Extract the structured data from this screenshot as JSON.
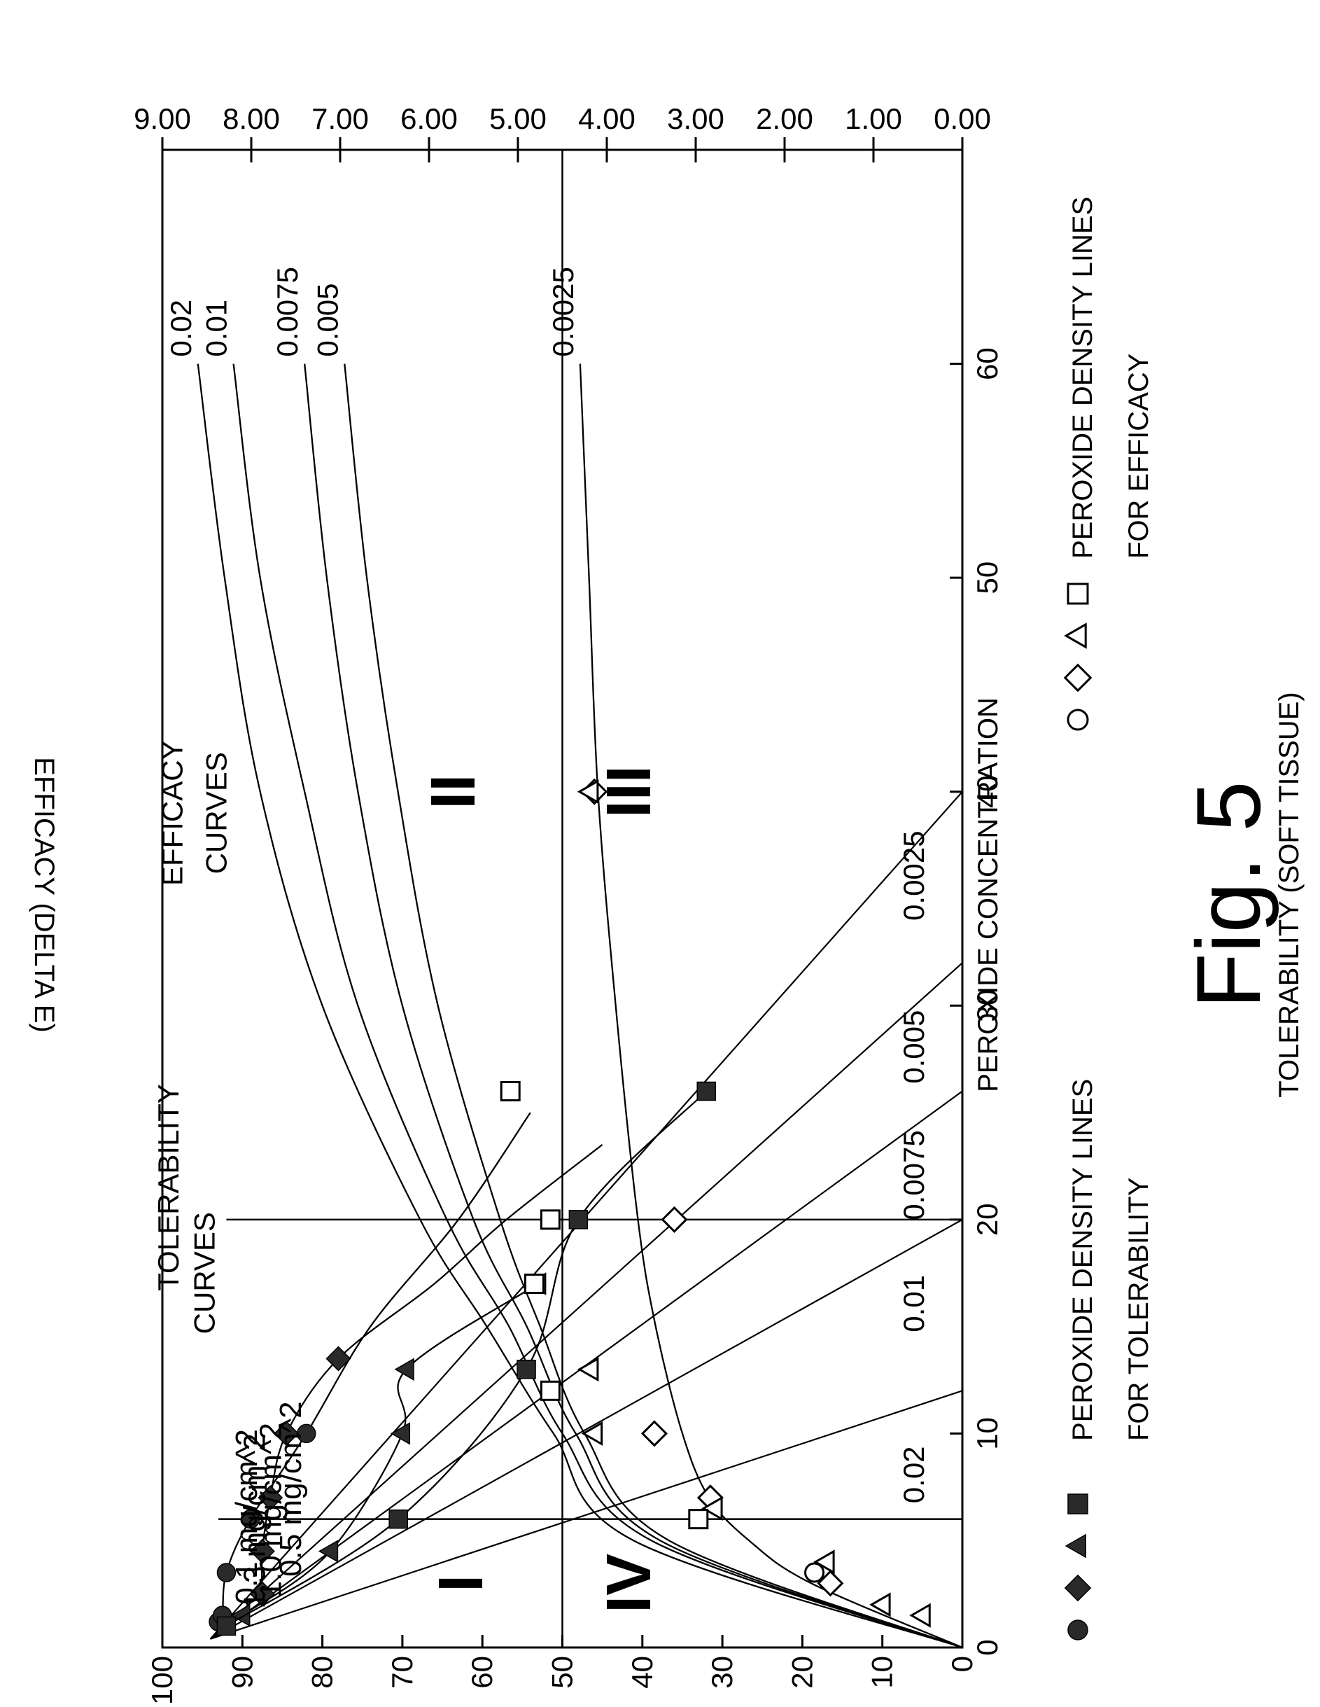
{
  "figure_label": "Fig. 5",
  "chart_data": {
    "type": "line",
    "xlabel": "PEROXIDE CONCENTRATION",
    "ylabel_left": "TOLERABILITY (SOFT TISSUE)",
    "ylabel_right": "EFFICACY (DELTA E)",
    "xlim": [
      0,
      70
    ],
    "ylim_left": [
      0,
      100
    ],
    "ylim_right": [
      0,
      9
    ],
    "x_ticks": [
      "0",
      "10",
      "20",
      "30",
      "40",
      "50",
      "60"
    ],
    "y_left_ticks": [
      "0",
      "10",
      "20",
      "30",
      "40",
      "50",
      "60",
      "70",
      "80",
      "90",
      "100"
    ],
    "y_right_ticks": [
      "0.00",
      "1.00",
      "2.00",
      "3.00",
      "4.00",
      "5.00",
      "6.00",
      "7.00",
      "8.00",
      "9.00"
    ],
    "guide_lines": {
      "horizontal_tolerability": 50,
      "vertical_concentrations": [
        6,
        20
      ]
    },
    "region_labels": [
      {
        "text": "I",
        "x": 3,
        "y": 60
      },
      {
        "text": "II",
        "x": 40,
        "y": 61
      },
      {
        "text": "III",
        "x": 40,
        "y": 39
      },
      {
        "text": "IV",
        "x": 3,
        "y": 39
      }
    ],
    "tolerability_curves": [
      {
        "label": "0.1 mg/cm^2",
        "marker": "circle",
        "points": [
          [
            1.2,
            93
          ],
          [
            1.5,
            92.5
          ],
          [
            3.5,
            92
          ],
          [
            6,
            89
          ],
          [
            10,
            82
          ],
          [
            15,
            74
          ],
          [
            20,
            63
          ],
          [
            25,
            54
          ]
        ]
      },
      {
        "label": "0.5 mg/cm^2",
        "marker": "diamond",
        "points": [
          [
            2.5,
            87.5
          ],
          [
            4.5,
            87.5
          ],
          [
            7,
            86.5
          ],
          [
            10,
            84.5
          ],
          [
            13.5,
            78
          ],
          [
            17,
            66
          ],
          [
            20,
            57
          ],
          [
            23.5,
            45
          ]
        ]
      },
      {
        "label": "1.0 mg/cm^2",
        "marker": "triangle",
        "points": [
          [
            1.5,
            90
          ],
          [
            4.5,
            79
          ],
          [
            10,
            70
          ],
          [
            13,
            69.5
          ],
          [
            17,
            53
          ]
        ]
      },
      {
        "label": "1.3 mg/cm^2",
        "marker": "square",
        "points": [
          [
            1,
            92
          ],
          [
            6,
            70.5
          ],
          [
            13,
            54.5
          ],
          [
            20,
            48
          ],
          [
            26,
            32
          ]
        ]
      }
    ],
    "efficacy_curves": [
      {
        "label": "0.02",
        "points": [
          [
            0,
            0
          ],
          [
            5,
            3.7
          ],
          [
            10,
            4.6
          ],
          [
            15,
            5.35
          ],
          [
            20,
            6.1
          ],
          [
            30,
            7.2
          ],
          [
            40,
            7.9
          ],
          [
            50,
            8.3
          ],
          [
            60,
            8.6
          ]
        ]
      },
      {
        "label": "0.01",
        "points": [
          [
            0,
            0
          ],
          [
            5,
            3.5
          ],
          [
            10,
            4.5
          ],
          [
            15,
            5.1
          ],
          [
            20,
            5.8
          ],
          [
            30,
            6.8
          ],
          [
            40,
            7.4
          ],
          [
            50,
            7.9
          ],
          [
            60,
            8.2
          ]
        ]
      },
      {
        "label": "0.0075",
        "points": [
          [
            0,
            0
          ],
          [
            5,
            3.4
          ],
          [
            10,
            4.35
          ],
          [
            15,
            4.9
          ],
          [
            20,
            5.5
          ],
          [
            30,
            6.3
          ],
          [
            40,
            6.8
          ],
          [
            50,
            7.15
          ],
          [
            60,
            7.4
          ]
        ]
      },
      {
        "label": "0.005",
        "points": [
          [
            0,
            0
          ],
          [
            5,
            3.3
          ],
          [
            10,
            4.25
          ],
          [
            15,
            4.75
          ],
          [
            20,
            5.2
          ],
          [
            30,
            5.9
          ],
          [
            40,
            6.35
          ],
          [
            50,
            6.7
          ],
          [
            60,
            6.95
          ]
        ]
      },
      {
        "label": "0.0025",
        "points": [
          [
            0,
            0
          ],
          [
            3,
            1.7
          ],
          [
            5,
            2.4
          ],
          [
            7,
            2.85
          ],
          [
            10,
            3.15
          ],
          [
            15,
            3.45
          ],
          [
            20,
            3.65
          ],
          [
            30,
            3.9
          ],
          [
            40,
            4.1
          ],
          [
            50,
            4.2
          ],
          [
            60,
            4.3
          ]
        ]
      }
    ],
    "density_lines": [
      {
        "label": "0.02",
        "end_x": 12
      },
      {
        "label": "0.01",
        "end_x": 20
      },
      {
        "label": "0.0075",
        "end_x": 26
      },
      {
        "label": "0.005",
        "end_x": 32
      },
      {
        "label": "0.0025",
        "end_x": 40
      }
    ],
    "efficacy_markers": [
      {
        "marker": "circle",
        "points": [
          [
            3.5,
            18.5
          ]
        ]
      },
      {
        "marker": "diamond",
        "points": [
          [
            3,
            16.5
          ],
          [
            7,
            31.5
          ],
          [
            10,
            38.5
          ],
          [
            20,
            36
          ],
          [
            40,
            46
          ]
        ]
      },
      {
        "marker": "triangle",
        "points": [
          [
            1.5,
            5
          ],
          [
            2,
            10
          ],
          [
            4,
            17
          ],
          [
            6.5,
            31
          ],
          [
            10,
            46
          ],
          [
            13,
            46.5
          ],
          [
            40,
            46.5
          ]
        ]
      },
      {
        "marker": "square",
        "points": [
          [
            6,
            33
          ],
          [
            12,
            51.5
          ],
          [
            17,
            53.5
          ],
          [
            20,
            51.5
          ],
          [
            26,
            56.5
          ]
        ]
      }
    ],
    "annotations": [
      {
        "text": "TOLERABILITY",
        "x": 21.5,
        "y": 98
      },
      {
        "text": "CURVES",
        "x": 17.5,
        "y": 93.5
      },
      {
        "text": "EFFICACY",
        "x": 39,
        "y": 97.5
      },
      {
        "text": "CURVES",
        "x": 39,
        "y": 92
      }
    ],
    "legend": {
      "placement": "bottom",
      "tolerability_label_line1": "PEROXIDE DENSITY LINES",
      "tolerability_label_line2": "FOR TOLERABILITY",
      "efficacy_label_line1": "PEROXIDE DENSITY LINES",
      "efficacy_label_line2": "FOR EFFICACY"
    }
  }
}
